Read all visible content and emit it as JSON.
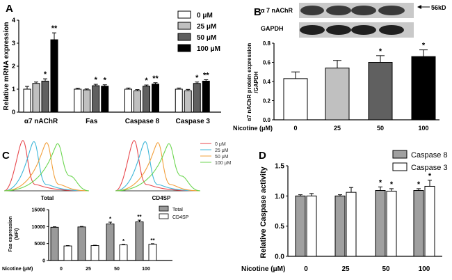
{
  "panel_letters": [
    "A",
    "B",
    "C",
    "D"
  ],
  "chart_data": [
    {
      "panel": "A",
      "type": "bar",
      "ylabel": "Relative mRNA expression",
      "ylim": [
        0,
        4
      ],
      "yticks": [
        0,
        1,
        2,
        3,
        4
      ],
      "categories": [
        "α7 nAChR",
        "Fas",
        "Caspase 8",
        "Caspase 3"
      ],
      "series": [
        {
          "name": "0 μM",
          "color": "#ffffff",
          "values": [
            1.0,
            1.0,
            1.0,
            1.0
          ],
          "errors": [
            0.12,
            0.04,
            0.05,
            0.05
          ],
          "sig": [
            "",
            "",
            "",
            ""
          ]
        },
        {
          "name": "25 μM",
          "color": "#c0c0c0",
          "values": [
            1.25,
            0.97,
            0.93,
            0.93
          ],
          "errors": [
            0.06,
            0.04,
            0.05,
            0.06
          ],
          "sig": [
            "",
            "",
            "",
            ""
          ]
        },
        {
          "name": "50 μM",
          "color": "#606060",
          "values": [
            1.35,
            1.15,
            1.13,
            1.25
          ],
          "errors": [
            0.1,
            0.06,
            0.05,
            0.06
          ],
          "sig": [
            "*",
            "*",
            "*",
            "*"
          ]
        },
        {
          "name": "100 μM",
          "color": "#000000",
          "values": [
            3.15,
            1.13,
            1.22,
            1.35
          ],
          "errors": [
            0.3,
            0.06,
            0.06,
            0.06
          ],
          "sig": [
            "**",
            "*",
            "**",
            "**"
          ]
        }
      ]
    },
    {
      "panel": "B",
      "type": "bar",
      "blot_labels": [
        "α 7 nAChR",
        "GAPDH"
      ],
      "marker": "56kD",
      "ylabel_lines": [
        "α7 nAChR protein expression",
        "/GAPDH"
      ],
      "ylim": [
        0,
        0.8
      ],
      "yticks": [
        0.0,
        0.2,
        0.4,
        0.6,
        0.8
      ],
      "xlabel": "Nicotine (μM)",
      "categories": [
        "0",
        "25",
        "50",
        "100"
      ],
      "colors": [
        "#ffffff",
        "#c0c0c0",
        "#606060",
        "#000000"
      ],
      "values": [
        0.43,
        0.54,
        0.6,
        0.66
      ],
      "errors": [
        0.07,
        0.08,
        0.07,
        0.07
      ],
      "sig": [
        "",
        "",
        "*",
        "*"
      ]
    },
    {
      "panel": "C",
      "type": "bar",
      "histogram_titles": [
        "Total",
        "CD4SP"
      ],
      "histogram_legend": [
        {
          "label": "0 μM",
          "color": "#e8474c"
        },
        {
          "label": "25 μM",
          "color": "#3fb7d9"
        },
        {
          "label": "50 μM",
          "color": "#f2a03c"
        },
        {
          "label": "100 μM",
          "color": "#6cd650"
        }
      ],
      "ylabel_lines": [
        "Fas expression",
        "(MFI)"
      ],
      "ylim": [
        0,
        15000
      ],
      "yticks": [
        0,
        5000,
        10000,
        15000
      ],
      "xlabel": "Nicotine (μM)",
      "categories": [
        "0",
        "25",
        "50",
        "100"
      ],
      "series": [
        {
          "name": "Total",
          "color": "#9a9a9a",
          "values": [
            9800,
            9900,
            10800,
            11400
          ],
          "errors": [
            150,
            150,
            500,
            500
          ],
          "sig": [
            "",
            "",
            "*",
            "**"
          ]
        },
        {
          "name": "CD4SP",
          "color": "#ffffff",
          "values": [
            4300,
            4400,
            4600,
            4800
          ],
          "errors": [
            100,
            100,
            150,
            150
          ],
          "sig": [
            "",
            "",
            "*",
            "**"
          ]
        }
      ]
    },
    {
      "panel": "D",
      "type": "bar",
      "ylabel": "Relative Caspase  activity",
      "ylim": [
        0,
        1.5
      ],
      "yticks": [
        0.0,
        0.5,
        1.0,
        1.5
      ],
      "xlabel": "Nicotine (μM)",
      "categories": [
        "0",
        "25",
        "50",
        "100"
      ],
      "series": [
        {
          "name": "Caspase 8",
          "color": "#a0a0a0",
          "values": [
            1.0,
            1.0,
            1.09,
            1.09
          ],
          "errors": [
            0.02,
            0.02,
            0.06,
            0.03
          ],
          "sig": [
            "",
            "",
            "*",
            "*"
          ]
        },
        {
          "name": "Caspase 3",
          "color": "#ffffff",
          "values": [
            1.0,
            1.06,
            1.08,
            1.16
          ],
          "errors": [
            0.04,
            0.08,
            0.04,
            0.1
          ],
          "sig": [
            "",
            "",
            "*",
            "*"
          ]
        }
      ]
    }
  ]
}
